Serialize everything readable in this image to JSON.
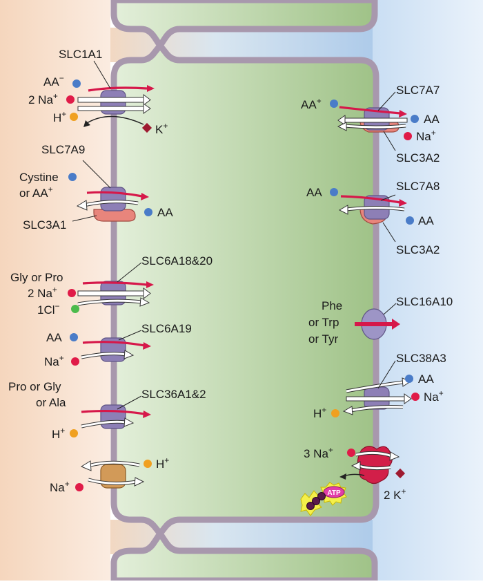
{
  "colors": {
    "lumen": "#f6dcc6",
    "cell": "#bcd7a8",
    "interstitium": "#d6e6f6",
    "membrane": "#a898ad",
    "transporter": "#8d7fb6",
    "heavy_chain": "#e8857c",
    "flow_arrow": "#d6184a",
    "sodium": "#e01b48",
    "amino_acid": "#4a7cc8",
    "proton": "#f0a020",
    "chloride": "#4cbb4c",
    "potassium": "#9e1a30",
    "exchanger": "#d29a58",
    "atpase": "#d21f49",
    "atp": "#e23da8"
  },
  "apical": {
    "slc1a1": {
      "name": "SLC1A1",
      "aa": "AA",
      "aa_charge": "−",
      "na": "2 Na",
      "h": "H",
      "k": "K",
      "sup": "+"
    },
    "slc7a9": {
      "name": "SLC7A9",
      "cystine": "Cystine",
      "or_aa": "or AA",
      "aa_out": "AA",
      "heavy": "SLC3A1",
      "sup": "+"
    },
    "slc6a18": {
      "name": "SLC6A18&20",
      "substrate": "Gly or Pro",
      "na": "2 Na",
      "cl": "1Cl",
      "cl_charge": "−",
      "sup": "+"
    },
    "slc6a19": {
      "name": "SLC6A19",
      "aa": "AA",
      "na": "Na",
      "sup": "+"
    },
    "slc36a1": {
      "name": "SLC36A1&2",
      "substrate_1": "Pro or Gly",
      "substrate_2": "or Ala",
      "h": "H",
      "sup": "+"
    },
    "nhe": {
      "h": "H",
      "na": "Na",
      "sup": "+"
    }
  },
  "basolateral": {
    "slc7a7": {
      "name": "SLC7A7",
      "aa_in": "AA",
      "aa_out": "AA",
      "na": "Na",
      "heavy": "SLC3A2",
      "sup": "+"
    },
    "slc7a8": {
      "name": "SLC7A8",
      "aa_in": "AA",
      "aa_out": "AA",
      "heavy": "SLC3A2"
    },
    "slc16a10": {
      "name": "SLC16A10",
      "substrate_1": "Phe",
      "substrate_2": "or Trp",
      "substrate_3": "or Tyr"
    },
    "slc38a3": {
      "name": "SLC38A3",
      "aa": "AA",
      "na": "Na",
      "h": "H",
      "sup": "+"
    },
    "nak_atpase": {
      "na": "3 Na",
      "k": "2 K",
      "atp": "ATP",
      "sup": "+"
    }
  }
}
